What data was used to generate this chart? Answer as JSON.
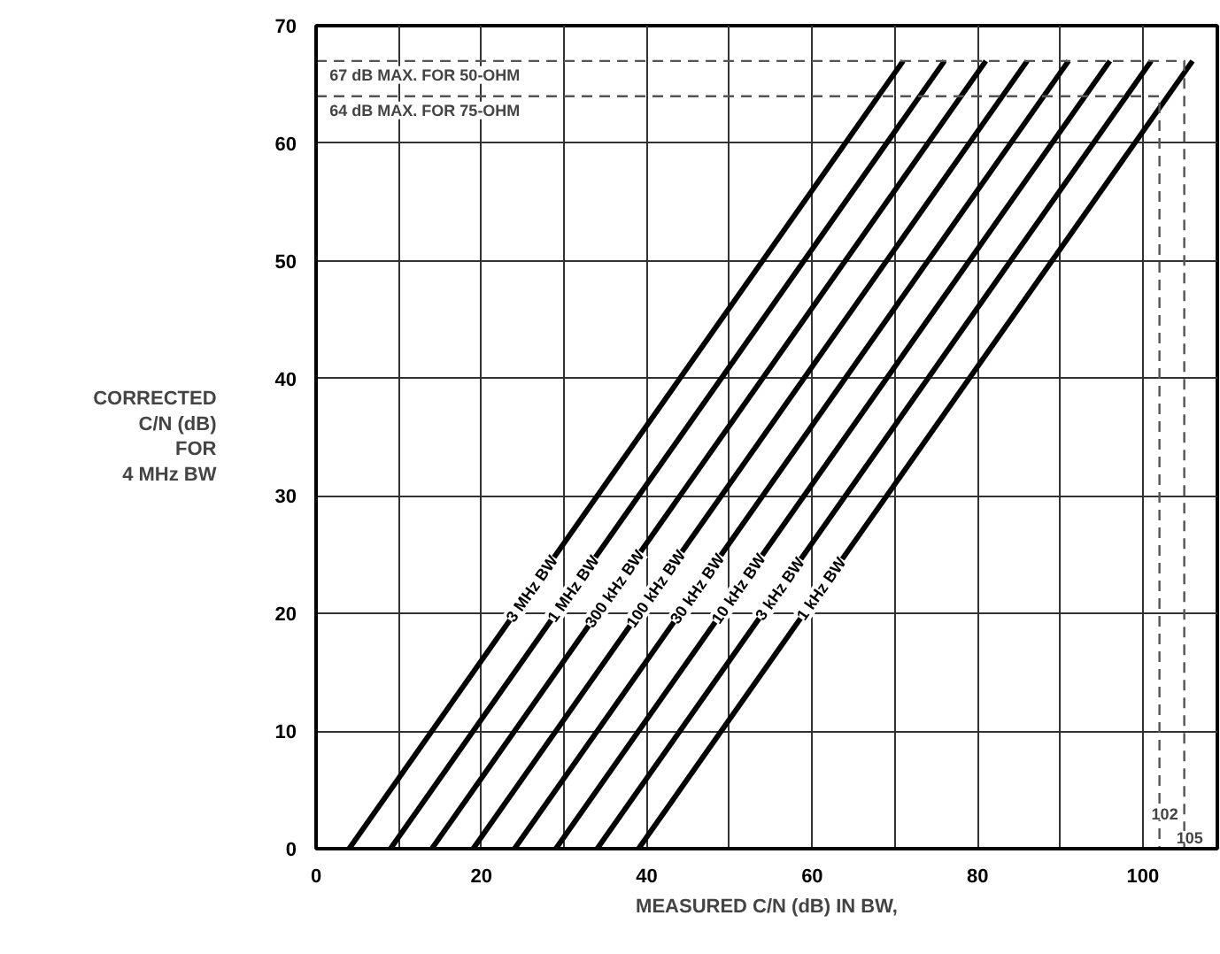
{
  "chart_data": {
    "type": "line",
    "xlabel": "MEASURED C/N (dB) IN BW,",
    "ylabel": "CORRECTED\nC/N (dB)\nFOR\n4 MHz BW",
    "xlim": [
      0,
      109
    ],
    "ylim": [
      0,
      70
    ],
    "xticks": [
      0,
      {
        "value": 10,
        "label": null
      },
      20,
      {
        "value": 30,
        "label": null
      },
      40,
      {
        "value": 50,
        "label": null
      },
      60,
      {
        "value": 70,
        "label": null
      },
      80,
      {
        "value": 90,
        "label": null
      },
      100
    ],
    "yticks": [
      0,
      10,
      20,
      30,
      40,
      50,
      60,
      70
    ],
    "grid": true,
    "line_style": "solid",
    "series": [
      {
        "name": "3 MHz BW",
        "color": "#000000",
        "x": [
          4,
          71
        ],
        "values": [
          0,
          67
        ]
      },
      {
        "name": "1 MHz BW",
        "color": "#000000",
        "x": [
          9,
          76
        ],
        "values": [
          0,
          67
        ]
      },
      {
        "name": "300 kHz BW",
        "color": "#000000",
        "x": [
          14,
          81
        ],
        "values": [
          0,
          67
        ]
      },
      {
        "name": "100 kHz BW",
        "color": "#000000",
        "x": [
          19,
          86
        ],
        "values": [
          0,
          67
        ]
      },
      {
        "name": "30 kHz BW",
        "color": "#000000",
        "x": [
          24,
          91
        ],
        "values": [
          0,
          67
        ]
      },
      {
        "name": "10 kHz BW",
        "color": "#000000",
        "x": [
          29,
          96
        ],
        "values": [
          0,
          67
        ]
      },
      {
        "name": "3 kHz BW",
        "color": "#000000",
        "x": [
          34,
          101
        ],
        "values": [
          0,
          67
        ]
      },
      {
        "name": "1 kHz BW",
        "color": "#000000",
        "x": [
          39,
          106
        ],
        "values": [
          0,
          67
        ]
      },
      {
        "color": "#555555",
        "line_style": "dashed",
        "x": [
          0,
          105,
          105
        ],
        "values": [
          67,
          67,
          0
        ]
      },
      {
        "color": "#555555",
        "line_style": "dashed",
        "x": [
          0,
          102,
          102
        ],
        "values": [
          64,
          64,
          0
        ]
      }
    ],
    "annotations": [
      {
        "text": "67 dB MAX. FOR 50-OHM",
        "x": 1,
        "y": 67
      },
      {
        "text": "64 dB MAX. FOR 75-OHM",
        "x": 1,
        "y": 64
      },
      {
        "text": "102",
        "x": 102,
        "y": 2
      },
      {
        "text": "105",
        "x": 105,
        "y": 0
      }
    ]
  }
}
